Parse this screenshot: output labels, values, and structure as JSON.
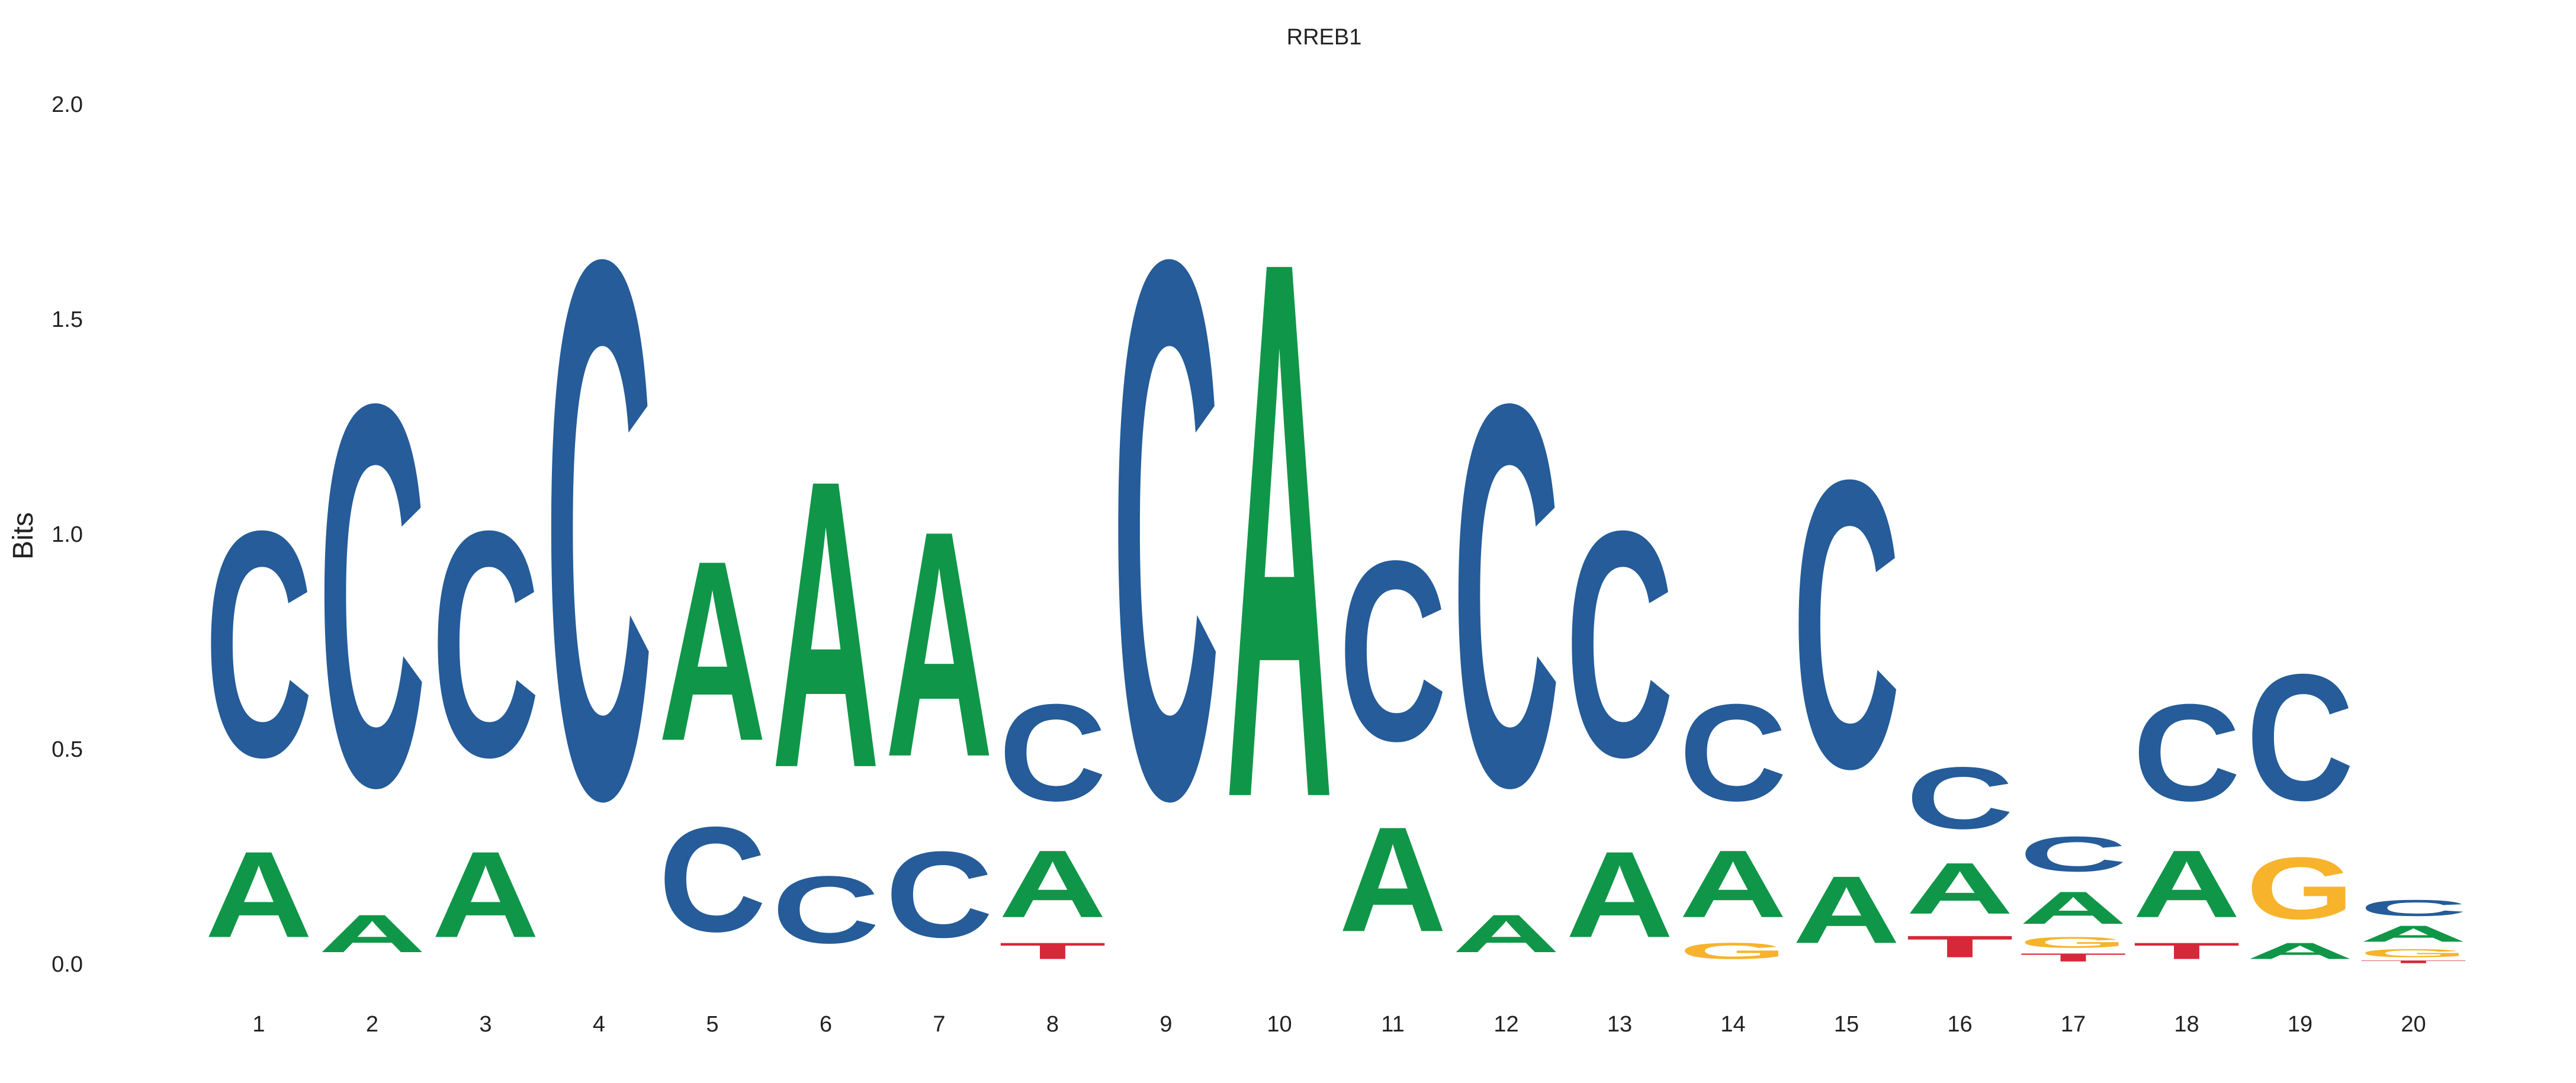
{
  "chart_data": {
    "type": "sequence-logo",
    "title": "RREB1",
    "xlabel": "",
    "ylabel": "Bits",
    "ylim": [
      0,
      2
    ],
    "yticks": [
      "0.0",
      "0.5",
      "1.0",
      "1.5",
      "2.0"
    ],
    "ytick_values": [
      0,
      0.5,
      1,
      1.5,
      2
    ],
    "grid": false,
    "legend": "none",
    "colors": {
      "A": "#109648",
      "C": "#255C99",
      "G": "#F7B32B",
      "T": "#D62839"
    },
    "positions": [
      {
        "label": "1",
        "stack": [
          [
            "A",
            0.32
          ],
          [
            "C",
            0.84
          ]
        ]
      },
      {
        "label": "2",
        "stack": [
          [
            "A",
            0.14
          ],
          [
            "C",
            1.42
          ]
        ]
      },
      {
        "label": "3",
        "stack": [
          [
            "A",
            0.32
          ],
          [
            "C",
            0.84
          ]
        ]
      },
      {
        "label": "4",
        "stack": [
          [
            "C",
            2.0
          ]
        ]
      },
      {
        "label": "5",
        "stack": [
          [
            "C",
            0.39
          ],
          [
            "A",
            0.67
          ]
        ]
      },
      {
        "label": "6",
        "stack": [
          [
            "C",
            0.25
          ],
          [
            "A",
            1.07
          ]
        ]
      },
      {
        "label": "7",
        "stack": [
          [
            "C",
            0.32
          ],
          [
            "A",
            0.84
          ]
        ]
      },
      {
        "label": "8",
        "stack": [
          [
            "T",
            0.06
          ],
          [
            "A",
            0.25
          ],
          [
            "C",
            0.36
          ]
        ]
      },
      {
        "label": "9",
        "stack": [
          [
            "C",
            2.0
          ]
        ]
      },
      {
        "label": "10",
        "stack": [
          [
            "A",
            2.0
          ]
        ]
      },
      {
        "label": "11",
        "stack": [
          [
            "A",
            0.39
          ],
          [
            "C",
            0.67
          ]
        ]
      },
      {
        "label": "12",
        "stack": [
          [
            "A",
            0.14
          ],
          [
            "C",
            1.42
          ]
        ]
      },
      {
        "label": "13",
        "stack": [
          [
            "A",
            0.32
          ],
          [
            "C",
            0.84
          ]
        ]
      },
      {
        "label": "14",
        "stack": [
          [
            "G",
            0.06
          ],
          [
            "A",
            0.25
          ],
          [
            "C",
            0.36
          ]
        ]
      },
      {
        "label": "15",
        "stack": [
          [
            "A",
            0.25
          ],
          [
            "C",
            1.07
          ]
        ]
      },
      {
        "label": "16",
        "stack": [
          [
            "T",
            0.08
          ],
          [
            "A",
            0.19
          ],
          [
            "C",
            0.23
          ]
        ]
      },
      {
        "label": "17",
        "stack": [
          [
            "T",
            0.03
          ],
          [
            "G",
            0.04
          ],
          [
            "A",
            0.12
          ],
          [
            "C",
            0.13
          ]
        ]
      },
      {
        "label": "18",
        "stack": [
          [
            "T",
            0.06
          ],
          [
            "A",
            0.25
          ],
          [
            "C",
            0.36
          ]
        ]
      },
      {
        "label": "19",
        "stack": [
          [
            "A",
            0.06
          ],
          [
            "G",
            0.23
          ],
          [
            "C",
            0.47
          ]
        ]
      },
      {
        "label": "20",
        "stack": [
          [
            "T",
            0.01
          ],
          [
            "G",
            0.03
          ],
          [
            "A",
            0.06
          ],
          [
            "C",
            0.06
          ]
        ]
      }
    ]
  }
}
